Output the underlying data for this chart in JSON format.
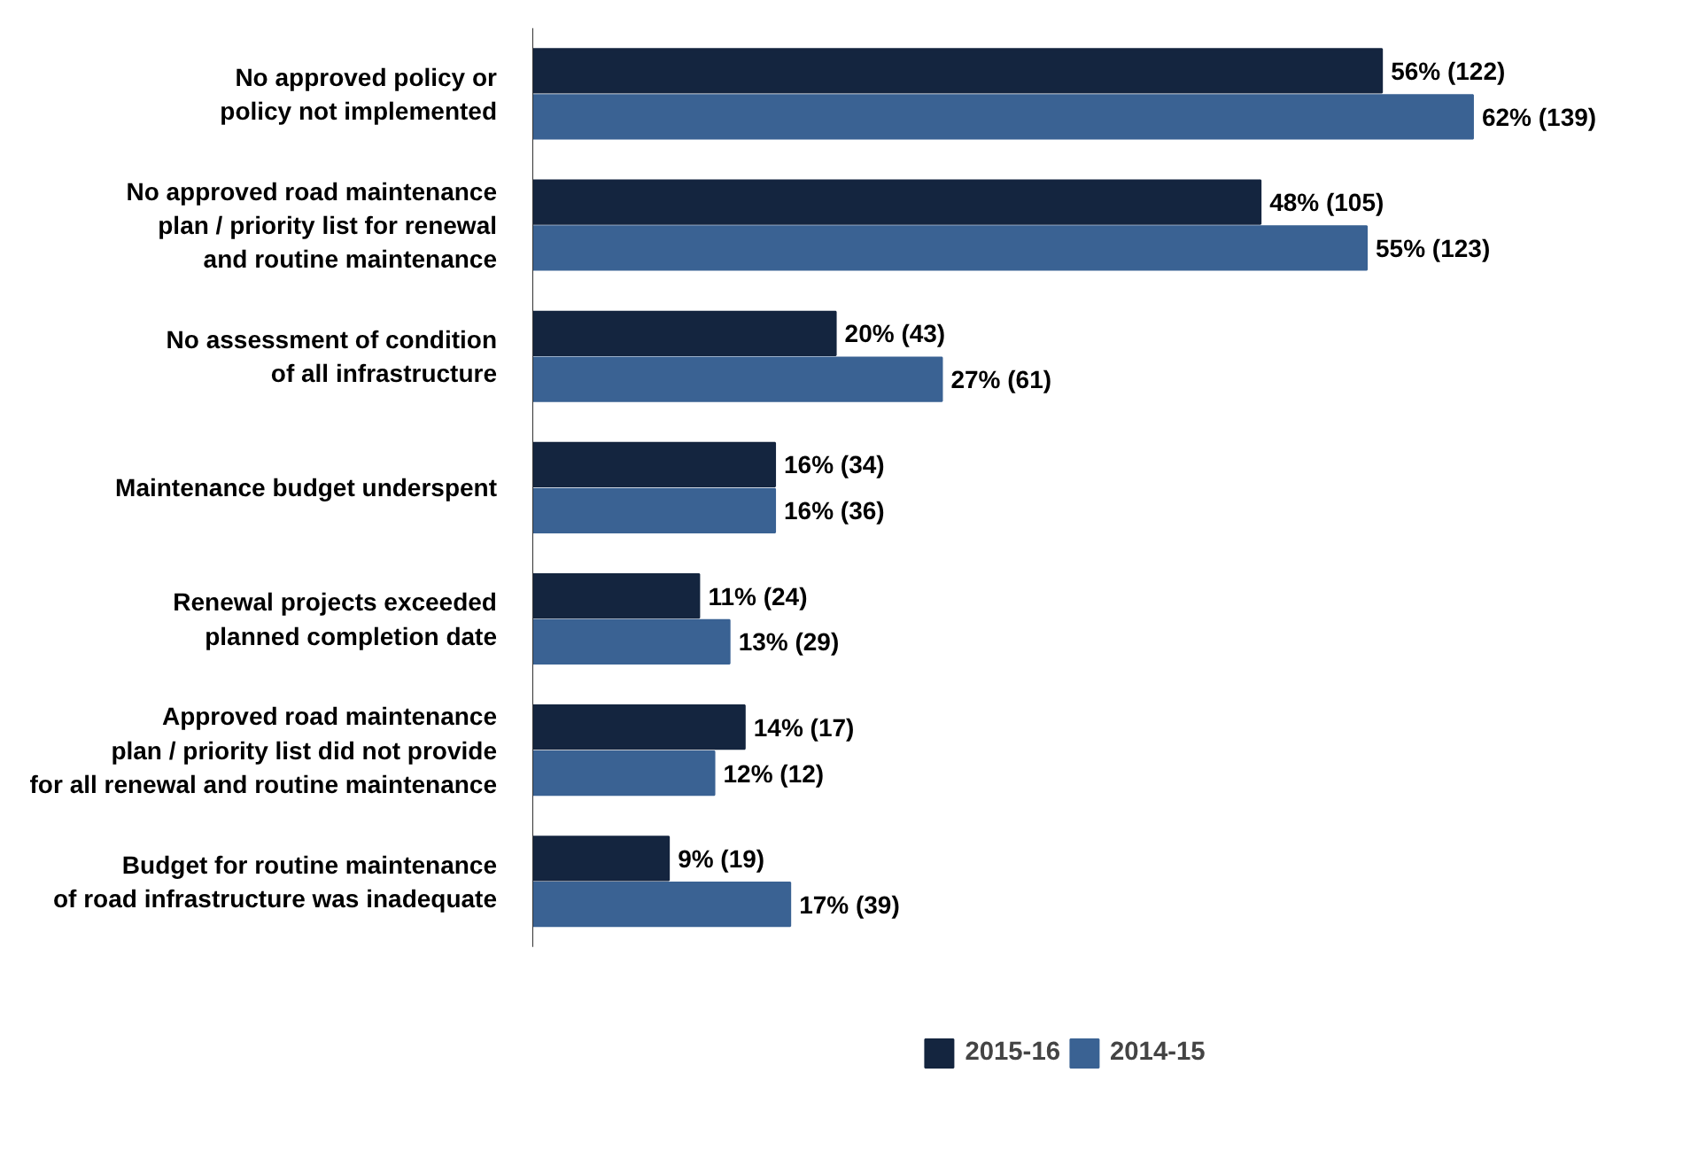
{
  "chart_data": {
    "type": "bar",
    "orientation": "horizontal",
    "categories": [
      "No approved policy or\npolicy not implemented",
      "No approved road maintenance\nplan / priority list for renewal\nand routine maintenance",
      "No assessment of condition\nof all infrastructure",
      "Maintenance budget underspent",
      "Renewal projects exceeded\nplanned completion date",
      "Approved road maintenance\nplan / priority list did not provide\nfor all renewal and routine maintenance",
      "Budget for routine maintenance\nof road infrastructure was inadequate"
    ],
    "series": [
      {
        "name": "2015-16",
        "color": "#14253f",
        "values": [
          56,
          48,
          20,
          16,
          11,
          14,
          9
        ],
        "value_labels": [
          "56% (122)",
          "48% (105)",
          "20% (43)",
          "16% (34)",
          "11% (24)",
          "14% (17)",
          "9% (19)"
        ]
      },
      {
        "name": "2014-15",
        "color": "#3a6293",
        "values": [
          62,
          55,
          27,
          16,
          13,
          12,
          17
        ],
        "value_labels": [
          "62% (139)",
          "55% (123)",
          "27% (61)",
          "16% (36)",
          "13% (29)",
          "12% (12)",
          "17% (39)"
        ]
      }
    ],
    "legend": "bottom",
    "grid": false,
    "tick_labels": "y"
  }
}
